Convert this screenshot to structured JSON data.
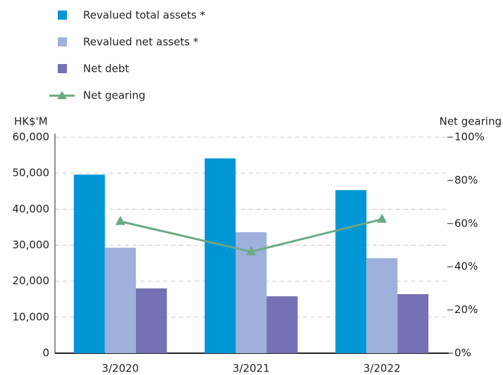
{
  "chart_data": {
    "type": "bar",
    "y_label": "HK$'M",
    "y2_label": "Net gearing",
    "categories": [
      "3/2020",
      "3/2021",
      "3/2022"
    ],
    "series": [
      {
        "name": "Revalued total assets *",
        "color": "#0096d6",
        "values": [
          49600,
          54100,
          45300
        ]
      },
      {
        "name": "Revalued net assets *",
        "color": "#9fb0db",
        "values": [
          29300,
          33600,
          26400
        ]
      },
      {
        "name": "Net debt",
        "color": "#7670b5",
        "values": [
          18000,
          15800,
          16400
        ]
      },
      {
        "name": "Net gearing",
        "color": "#6aaa85",
        "type": "line",
        "axis": "y2",
        "values": [
          61,
          47,
          62
        ]
      }
    ],
    "ylim": [
      0,
      60000
    ],
    "yticks": [
      0,
      {
        "value": 10000,
        "label": "10,000"
      },
      {
        "value": 20000,
        "label": "20,000"
      },
      {
        "value": 30000,
        "label": "30,000"
      },
      {
        "value": 40000,
        "label": "40,000"
      },
      {
        "value": 50000,
        "label": "50,000"
      },
      {
        "value": 60000,
        "label": "60,000"
      }
    ],
    "y2lim": [
      0,
      100
    ],
    "y2ticks": [
      {
        "value": 0,
        "label": "0%"
      },
      {
        "value": 20,
        "label": "20%"
      },
      {
        "value": 40,
        "label": "40%"
      },
      {
        "value": 60,
        "label": "60%"
      },
      {
        "value": 80,
        "label": "80%"
      },
      {
        "value": 100,
        "label": "100%"
      }
    ],
    "grid": true
  }
}
